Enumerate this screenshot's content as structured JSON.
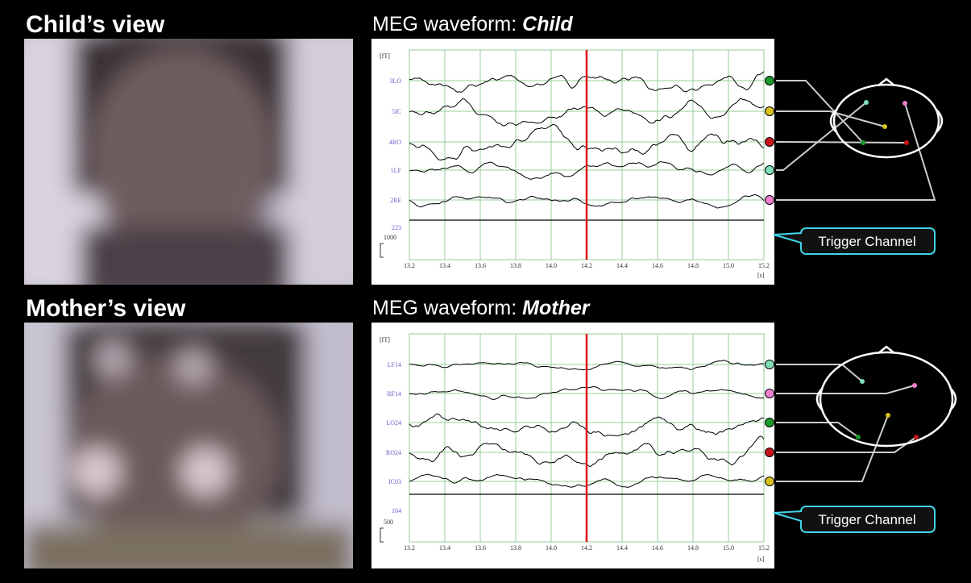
{
  "panels": [
    {
      "view_title": "Child’s view",
      "waveform_title": "MEG waveform: ",
      "subject": "Child",
      "y_unit": "[fT]",
      "channels": [
        "3LO",
        "5IC",
        "4RO",
        "1LF",
        "2RF"
      ],
      "trigger_label": "223",
      "scale": "1000",
      "xticks": [
        "13.2",
        "13.4",
        "13.6",
        "13.8",
        "14.0",
        "14.2",
        "14.4",
        "14.6",
        "14.8",
        "15.0",
        "15.2"
      ],
      "x_unit": "[s]",
      "callout": "Trigger Channel"
    },
    {
      "view_title": "Mother’s view",
      "waveform_title": "MEG waveform: ",
      "subject": "Mother",
      "y_unit": "[fT]",
      "channels": [
        "LF14",
        "RF14",
        "LO24",
        "RO24",
        "IC03"
      ],
      "trigger_label": "164",
      "scale": "500",
      "xticks": [
        "13.2",
        "13.4",
        "13.6",
        "13.8",
        "14.0",
        "14.2",
        "14.4",
        "14.6",
        "14.8",
        "15.0",
        "15.2"
      ],
      "x_unit": "[s]",
      "callout": "Trigger Channel"
    }
  ]
}
